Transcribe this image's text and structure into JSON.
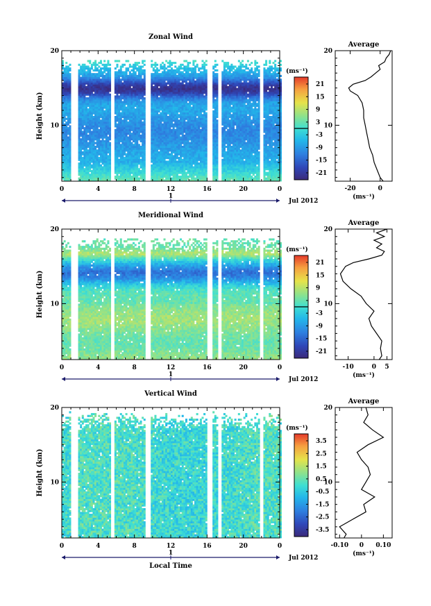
{
  "chart_data": [
    {
      "type": "heatmap",
      "title": "Zonal Wind",
      "ylabel": "Height (km)",
      "xlabel": "",
      "x_ticks": [
        "0",
        "4",
        "8",
        "12",
        "16",
        "20",
        "0"
      ],
      "y_ticks": [
        "20",
        "10"
      ],
      "xlim": [
        0,
        24
      ],
      "ylim": [
        2.5,
        20
      ],
      "day_label": "1",
      "date_label": "Jul 2012",
      "colorbar": {
        "unit": "(ms⁻¹)",
        "ticks": [
          "21",
          "15",
          "9",
          "3",
          "-3",
          "-9",
          "-15",
          "-21"
        ],
        "range": [
          -24,
          24
        ],
        "zero_line": 0
      },
      "profile_description": "easterly jet near 15 km, westerlies aloft",
      "average": {
        "title": "Average",
        "xlabel": "(ms⁻¹)",
        "x_ticks": [
          "-20",
          "0"
        ],
        "xlim": [
          -30,
          8
        ],
        "y_ticks": [
          "20",
          "10"
        ],
        "height": [
          2.5,
          3,
          4,
          5,
          6,
          7,
          8,
          9,
          10,
          11,
          12,
          13,
          14,
          14.6,
          15,
          15.5,
          16,
          16.5,
          17,
          17.5,
          18,
          18.5,
          19,
          19.5,
          20
        ],
        "value": [
          2,
          0,
          -2,
          -4,
          -5,
          -7,
          -8,
          -9,
          -10,
          -11,
          -11,
          -12,
          -15,
          -20,
          -21,
          -18,
          -10,
          -6,
          -3,
          0,
          -1,
          3,
          4,
          6,
          7
        ]
      }
    },
    {
      "type": "heatmap",
      "title": "Meridional Wind",
      "ylabel": "Height (km)",
      "xlabel": "",
      "x_ticks": [
        "0",
        "4",
        "8",
        "12",
        "16",
        "20",
        "0"
      ],
      "y_ticks": [
        "20",
        "10"
      ],
      "xlim": [
        0,
        24
      ],
      "ylim": [
        2.5,
        20
      ],
      "day_label": "1",
      "date_label": "Jul 2012",
      "colorbar": {
        "unit": "(ms⁻¹)",
        "ticks": [
          "21",
          "15",
          "9",
          "3",
          "-3",
          "-9",
          "-15",
          "-21"
        ],
        "range": [
          -24,
          24
        ],
        "zero_line": 0
      },
      "average": {
        "title": "Average",
        "xlabel": "(ms⁻¹)",
        "x_ticks": [
          "-10",
          "0",
          "5"
        ],
        "xlim": [
          -15,
          7
        ],
        "y_ticks": [
          "20",
          "10"
        ],
        "height": [
          2.5,
          3,
          4,
          5,
          6,
          7,
          8,
          9,
          10,
          11,
          12,
          13,
          14,
          15,
          15.5,
          16,
          16.5,
          17,
          17.5,
          18,
          18.5,
          19,
          19.5,
          20
        ],
        "value": [
          2,
          3,
          2.5,
          3,
          1,
          -1,
          -2,
          0,
          -3,
          -5,
          -9,
          -12,
          -13,
          -11,
          -8,
          -2,
          3,
          4,
          1,
          3,
          0,
          4,
          1,
          5
        ]
      }
    },
    {
      "type": "heatmap",
      "title": "Vertical Wind",
      "ylabel": "Height (km)",
      "xlabel": "Local Time",
      "x_ticks": [
        "0",
        "4",
        "8",
        "12",
        "16",
        "20",
        "0"
      ],
      "y_ticks": [
        "20",
        "10"
      ],
      "xlim": [
        0,
        24
      ],
      "ylim": [
        2.5,
        20
      ],
      "day_label": "1",
      "date_label": "Jul 2012",
      "colorbar": {
        "unit": "(ms⁻¹)",
        "ticks": [
          "3.5",
          "2.5",
          "1.5",
          "0.5",
          "-0.5",
          "-1.5",
          "-2.5",
          "-3.5"
        ],
        "range": [
          -4,
          4
        ],
        "zero_line": null
      },
      "average": {
        "title": "Average",
        "xlabel": "(ms⁻¹)",
        "x_ticks": [
          "-0.10",
          "0",
          "0.10"
        ],
        "xlim": [
          -0.12,
          0.14
        ],
        "y_ticks": [
          "20",
          "10"
        ],
        "height": [
          2.5,
          3,
          4,
          5,
          6,
          7,
          8,
          9,
          10,
          11,
          12,
          13,
          14,
          15,
          16,
          17,
          18,
          19,
          20
        ],
        "value": [
          -0.08,
          -0.07,
          -0.1,
          -0.04,
          0.02,
          0.01,
          0.06,
          0.0,
          0.02,
          0.04,
          0.03,
          0.0,
          -0.02,
          0.03,
          0.1,
          0.05,
          0.01,
          0.03,
          0.02
        ]
      }
    }
  ]
}
